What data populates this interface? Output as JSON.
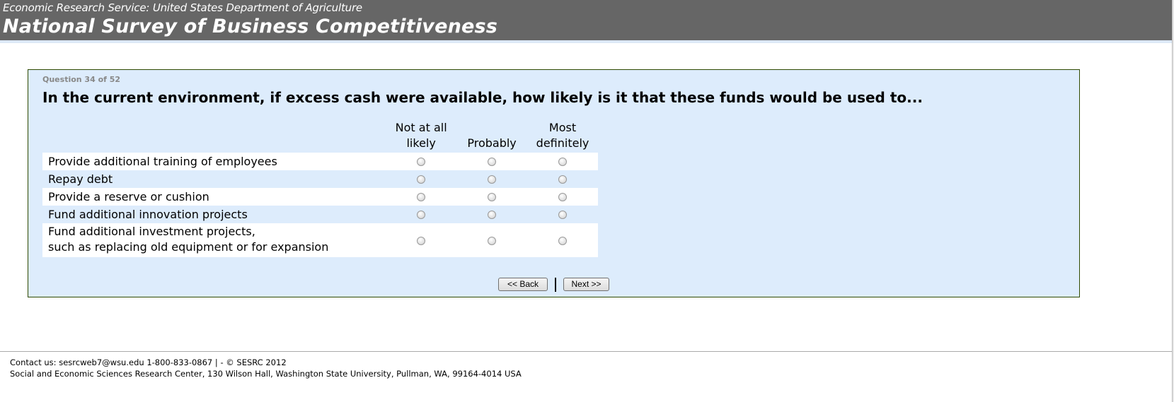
{
  "header": {
    "agency": "Economic Research Service: United States Department of Agriculture",
    "title": "National Survey of Business Competitiveness"
  },
  "question": {
    "counter": "Question 34 of 52",
    "text": "In the current environment, if excess cash were available, how likely is it that these funds would be used to...",
    "scale": [
      {
        "line1": "Not at all",
        "line2": "likely"
      },
      {
        "line1": "",
        "line2": "Probably"
      },
      {
        "line1": "Most",
        "line2": "definitely"
      }
    ],
    "items": [
      {
        "line1": "Provide additional training of employees",
        "line2": ""
      },
      {
        "line1": "Repay debt",
        "line2": ""
      },
      {
        "line1": "Provide a reserve or cushion",
        "line2": ""
      },
      {
        "line1": "Fund additional innovation projects",
        "line2": ""
      },
      {
        "line1": "Fund additional investment projects,",
        "line2": "such as replacing old equipment or for expansion"
      }
    ]
  },
  "nav": {
    "back": "<< Back",
    "next": "Next >>"
  },
  "footer": {
    "contact": "Contact us: sesrcweb7@wsu.edu 1-800-833-0867 | - © SESRC 2012",
    "address": "Social and Economic Sciences Research Center, 130 Wilson Hall, Washington State University, Pullman, WA, 99164-4014 USA"
  }
}
